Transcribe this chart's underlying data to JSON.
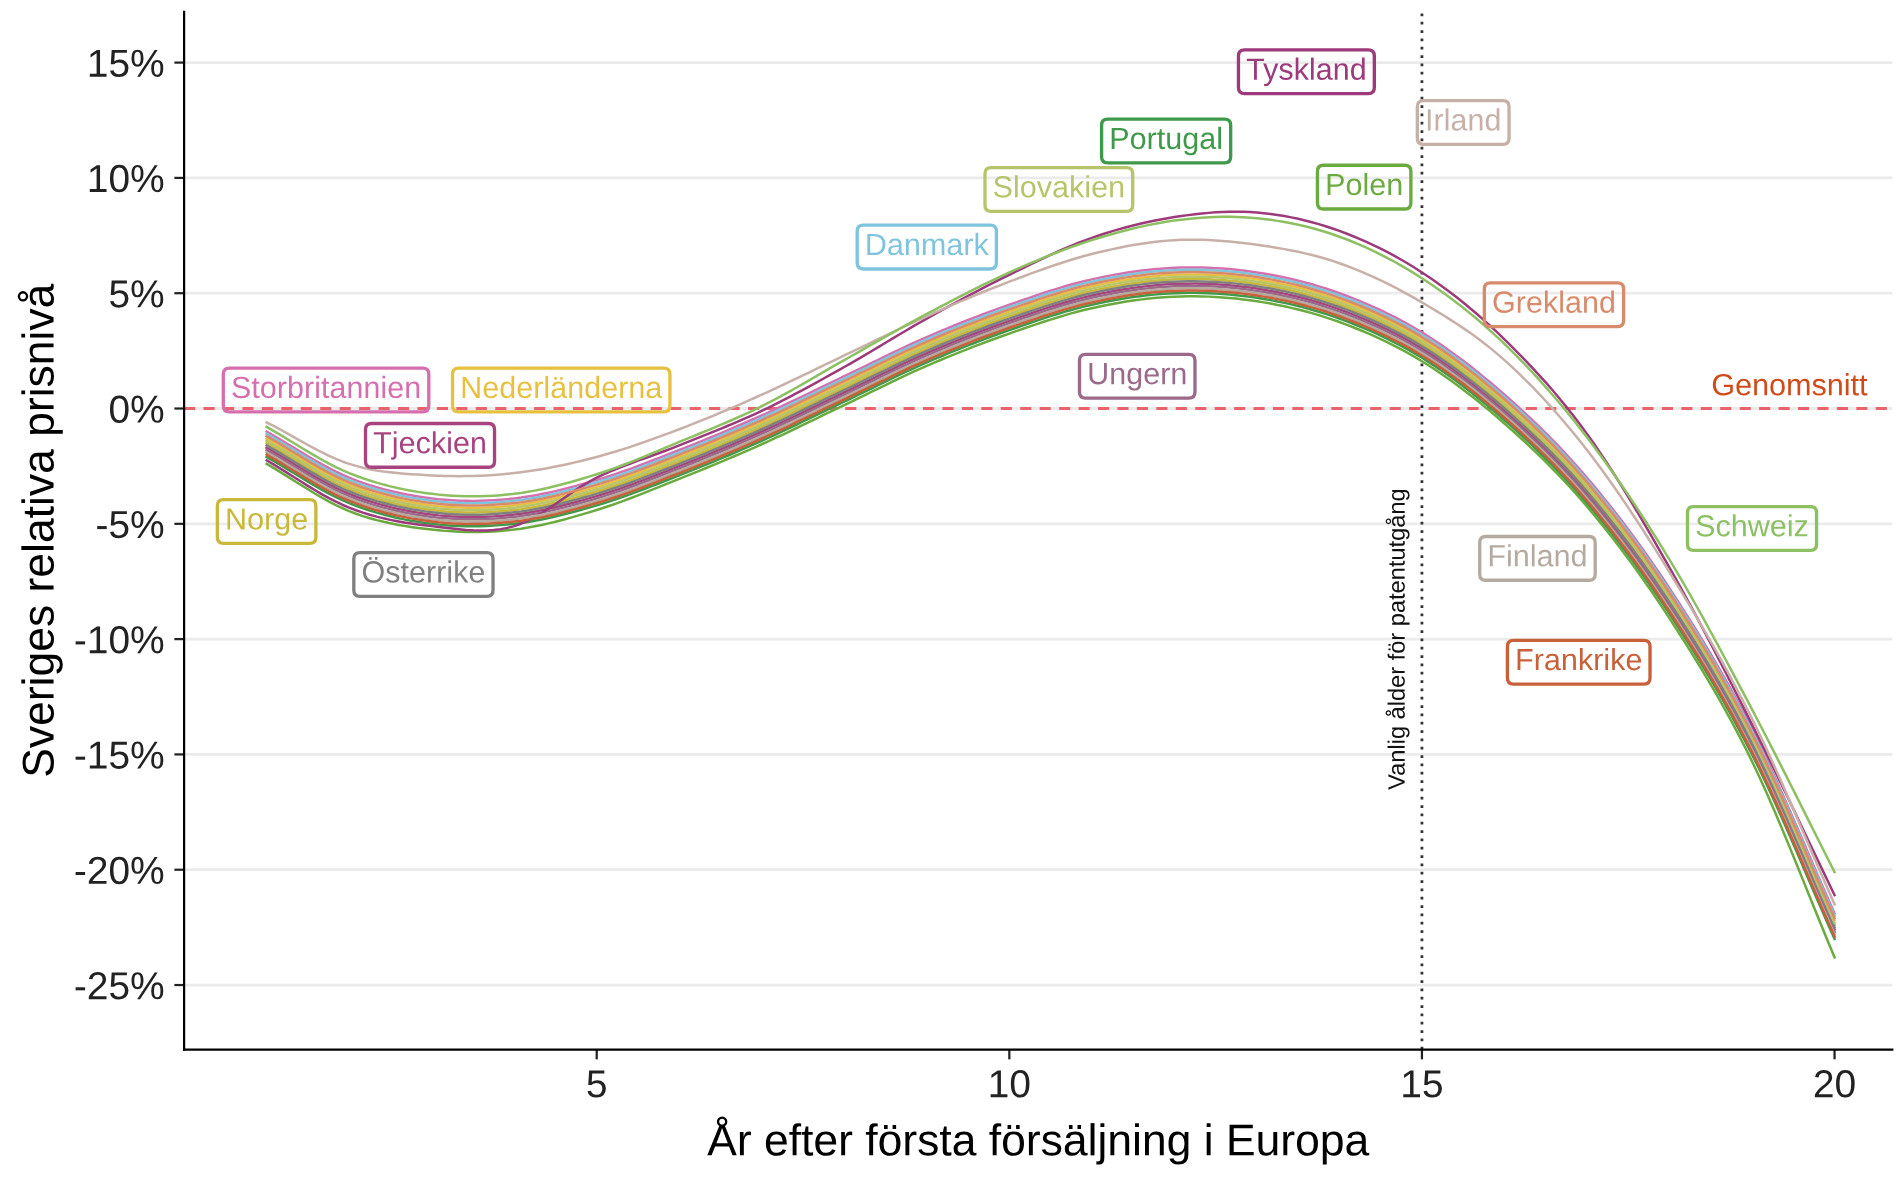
{
  "chart_data": {
    "type": "line",
    "xlabel": "År efter första försäljning i Europa",
    "ylabel": "Sveriges relativa prisnivå",
    "x": [
      1,
      2,
      3,
      4,
      5,
      6,
      7,
      8,
      9,
      10,
      11,
      12,
      13,
      14,
      15,
      16,
      17,
      18,
      19,
      20
    ],
    "xlim": [
      0,
      20.7
    ],
    "xticks": [
      5,
      10,
      15,
      20
    ],
    "ylim": [
      -27.8,
      17.2
    ],
    "yticks": [
      {
        "value": 15,
        "label": "15%"
      },
      {
        "value": 10,
        "label": "10%"
      },
      {
        "value": 5,
        "label": "5%"
      },
      {
        "value": 0,
        "label": "0%"
      },
      {
        "value": -5,
        "label": "-5%"
      },
      {
        "value": -10,
        "label": "-10%"
      },
      {
        "value": -15,
        "label": "-15%"
      },
      {
        "value": -20,
        "label": "-20%"
      },
      {
        "value": -25,
        "label": "-25%"
      }
    ],
    "grid": "y",
    "legend": false,
    "line_style": "solid",
    "marker": "none",
    "ref_lines": [
      {
        "axis": "y",
        "value": 0,
        "label": "Genomsnitt",
        "color": "#e8636b",
        "line_style": "dashed"
      },
      {
        "axis": "x",
        "value": 15,
        "label": "Vanlig ålder för patentutgång",
        "color": "#333333",
        "line_style": "dotted"
      }
    ],
    "series": [
      {
        "name": "Storbritannien",
        "color": "#d66fae",
        "values": [
          -1.0,
          -3.0,
          -3.9,
          -3.9,
          -3.1,
          -1.8,
          -0.3,
          1.4,
          3.1,
          4.5,
          5.6,
          6.1,
          5.9,
          5.0,
          3.3,
          0.6,
          -3.0,
          -7.8,
          -13.9,
          -21.9
        ]
      },
      {
        "name": "Nederländerna",
        "color": "#e8c040",
        "values": [
          -1.3,
          -3.3,
          -4.2,
          -4.2,
          -3.4,
          -2.1,
          -0.6,
          1.1,
          2.8,
          4.2,
          5.3,
          5.8,
          5.6,
          4.7,
          3.0,
          0.3,
          -3.3,
          -8.1,
          -14.2,
          -22.2
        ]
      },
      {
        "name": "Norge",
        "color": "#c9b93a",
        "values": [
          -1.5,
          -3.5,
          -4.4,
          -4.4,
          -3.6,
          -2.3,
          -0.8,
          0.9,
          2.6,
          4.0,
          5.1,
          5.6,
          5.4,
          4.5,
          2.8,
          0.1,
          -3.5,
          -8.3,
          -14.4,
          -22.4
        ]
      },
      {
        "name": "Tjeckien",
        "color": "#a8437f",
        "values": [
          -1.7,
          -3.7,
          -4.6,
          -4.6,
          -3.8,
          -2.5,
          -1.0,
          0.7,
          2.4,
          3.8,
          4.9,
          5.4,
          5.2,
          4.3,
          2.6,
          -0.1,
          -3.7,
          -8.5,
          -14.6,
          -22.6
        ]
      },
      {
        "name": "Österrike",
        "color": "#808080",
        "values": [
          -1.6,
          -3.6,
          -4.5,
          -4.5,
          -3.7,
          -2.4,
          -0.9,
          0.8,
          2.5,
          3.9,
          5.0,
          5.5,
          5.3,
          4.4,
          2.7,
          0.0,
          -3.6,
          -8.4,
          -14.5,
          -22.5
        ]
      },
      {
        "name": "Danmark",
        "color": "#7ec4dc",
        "values": [
          -1.1,
          -3.1,
          -4.0,
          -4.0,
          -3.2,
          -1.9,
          -0.4,
          1.3,
          3.0,
          4.4,
          5.5,
          6.0,
          5.8,
          4.9,
          3.2,
          0.5,
          -3.1,
          -7.9,
          -14.0,
          -22.0
        ]
      },
      {
        "name": "Ungern",
        "color": "#9b6a8a",
        "values": [
          -1.8,
          -3.8,
          -4.7,
          -4.7,
          -3.9,
          -2.6,
          -1.1,
          0.6,
          2.3,
          3.7,
          4.8,
          5.3,
          5.1,
          4.2,
          2.5,
          -0.2,
          -3.8,
          -8.6,
          -14.7,
          -22.7
        ]
      },
      {
        "name": "Slovakien",
        "color": "#b8c46a",
        "values": [
          -1.4,
          -3.4,
          -4.3,
          -4.3,
          -3.5,
          -2.2,
          -0.7,
          1.0,
          2.7,
          4.1,
          5.2,
          5.7,
          5.5,
          4.6,
          2.9,
          0.2,
          -3.4,
          -8.2,
          -14.3,
          -22.3
        ]
      },
      {
        "name": "Polen",
        "color": "#6aaa3f",
        "values": [
          -2.4,
          -4.45,
          -5.25,
          -5.25,
          -4.4,
          -3.05,
          -1.55,
          0.15,
          1.85,
          3.25,
          4.35,
          4.85,
          4.65,
          3.75,
          2.05,
          -0.65,
          -4.25,
          -9.1,
          -15.3,
          -23.8
        ]
      },
      {
        "name": "Portugal",
        "color": "#3e9a4a",
        "values": [
          -2.1,
          -4.1,
          -5.0,
          -5.0,
          -4.2,
          -2.9,
          -1.4,
          0.3,
          2.0,
          3.4,
          4.5,
          5.0,
          4.8,
          3.9,
          2.2,
          -0.5,
          -4.1,
          -8.9,
          -15.0,
          -23.0
        ]
      },
      {
        "name": "Tyskland",
        "color": "#9c3a7c",
        "values": [
          -2.25,
          -4.3,
          -5.1,
          -5.1,
          -3.0,
          -1.6,
          -0.1,
          1.8,
          3.9,
          5.8,
          7.4,
          8.3,
          8.5,
          7.7,
          5.9,
          3.0,
          -1.1,
          -6.9,
          -13.7,
          -21.1
        ]
      },
      {
        "name": "Irland",
        "color": "#c7b0a8",
        "values": [
          -0.6,
          -2.4,
          -2.9,
          -2.8,
          -2.1,
          -0.9,
          0.6,
          2.3,
          4.0,
          5.5,
          6.7,
          7.3,
          7.1,
          6.3,
          4.6,
          2.1,
          -1.8,
          -7.1,
          -13.45,
          -21.5
        ]
      },
      {
        "name": "Grekland",
        "color": "#d98a6a",
        "values": [
          -1.2,
          -3.2,
          -4.1,
          -4.1,
          -3.3,
          -2.0,
          -0.5,
          1.2,
          2.9,
          4.3,
          5.4,
          5.9,
          5.7,
          4.8,
          3.1,
          0.4,
          -3.2,
          -8.0,
          -14.1,
          -22.1
        ]
      },
      {
        "name": "Finland",
        "color": "#b5aaa0",
        "values": [
          -1.9,
          -3.9,
          -4.8,
          -4.8,
          -4.0,
          -2.7,
          -1.2,
          0.5,
          2.2,
          3.6,
          4.7,
          5.2,
          5.0,
          4.1,
          2.4,
          -0.3,
          -3.9,
          -8.7,
          -14.8,
          -22.8
        ]
      },
      {
        "name": "Schweiz",
        "color": "#8cc063",
        "values": [
          -0.8,
          -2.8,
          -3.7,
          -3.7,
          -2.85,
          -1.45,
          0.1,
          2.1,
          4.1,
          5.9,
          7.3,
          8.15,
          8.25,
          7.45,
          5.65,
          2.8,
          -1.25,
          -6.55,
          -13.05,
          -20.1
        ]
      },
      {
        "name": "Frankrike",
        "color": "#c8603a",
        "values": [
          -2.0,
          -4.0,
          -4.9,
          -4.9,
          -4.1,
          -2.8,
          -1.3,
          0.4,
          2.1,
          3.5,
          4.6,
          5.1,
          4.9,
          4.0,
          2.3,
          -0.4,
          -4.0,
          -8.8,
          -14.9,
          -22.9
        ]
      }
    ]
  }
}
